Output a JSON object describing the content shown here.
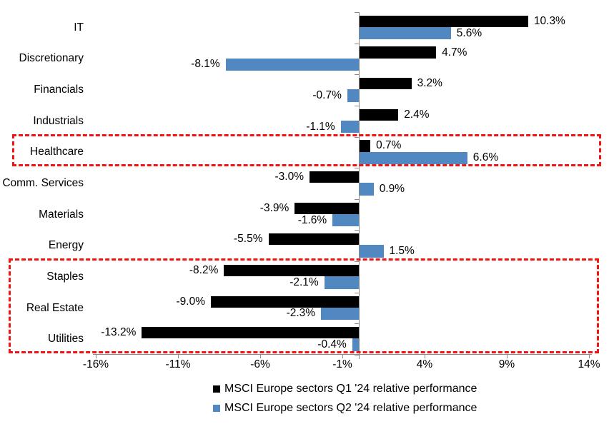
{
  "chart_data": {
    "type": "bar",
    "orientation": "horizontal",
    "title": "",
    "xlabel": "",
    "ylabel": "",
    "categories": [
      "IT",
      "Discretionary",
      "Financials",
      "Industrials",
      "Healthcare",
      "Comm. Services",
      "Materials",
      "Energy",
      "Staples",
      "Real Estate",
      "Utilities"
    ],
    "series": [
      {
        "name": "MSCI Europe sectors Q1 '24 relative performance",
        "color": "#000000",
        "values": [
          10.3,
          4.7,
          3.2,
          2.4,
          0.7,
          -3.0,
          -3.9,
          -5.5,
          -8.2,
          -9.0,
          -13.2
        ],
        "labels": [
          "10.3%",
          "4.7%",
          "3.2%",
          "2.4%",
          "0.7%",
          "-3.0%",
          "-3.9%",
          "-5.5%",
          "-8.2%",
          "-9.0%",
          "-13.2%"
        ]
      },
      {
        "name": "MSCI Europe sectors Q2 '24 relative performance",
        "color": "#5288C1",
        "values": [
          5.6,
          -8.1,
          -0.7,
          -1.1,
          6.6,
          0.9,
          -1.6,
          1.5,
          -2.1,
          -2.3,
          -0.4
        ],
        "labels": [
          "5.6%",
          "-8.1%",
          "-0.7%",
          "-1.1%",
          "6.6%",
          "0.9%",
          "-1.6%",
          "1.5%",
          "-2.1%",
          "-2.3%",
          "-0.4%"
        ]
      }
    ],
    "x_ticks": [
      "-16%",
      "-11%",
      "-6%",
      "-1%",
      "4%",
      "9%",
      "14%"
    ],
    "x_tick_values": [
      -16,
      -11,
      -6,
      -1,
      4,
      9,
      14
    ],
    "xlim": [
      -16,
      14
    ],
    "grid": false,
    "legend_position": "bottom",
    "axis_color": "#8a8a8a",
    "highlight_color": "#f41212",
    "highlights": [
      {
        "categories": [
          "Healthcare"
        ]
      },
      {
        "categories": [
          "Staples",
          "Real Estate",
          "Utilities"
        ]
      }
    ]
  }
}
